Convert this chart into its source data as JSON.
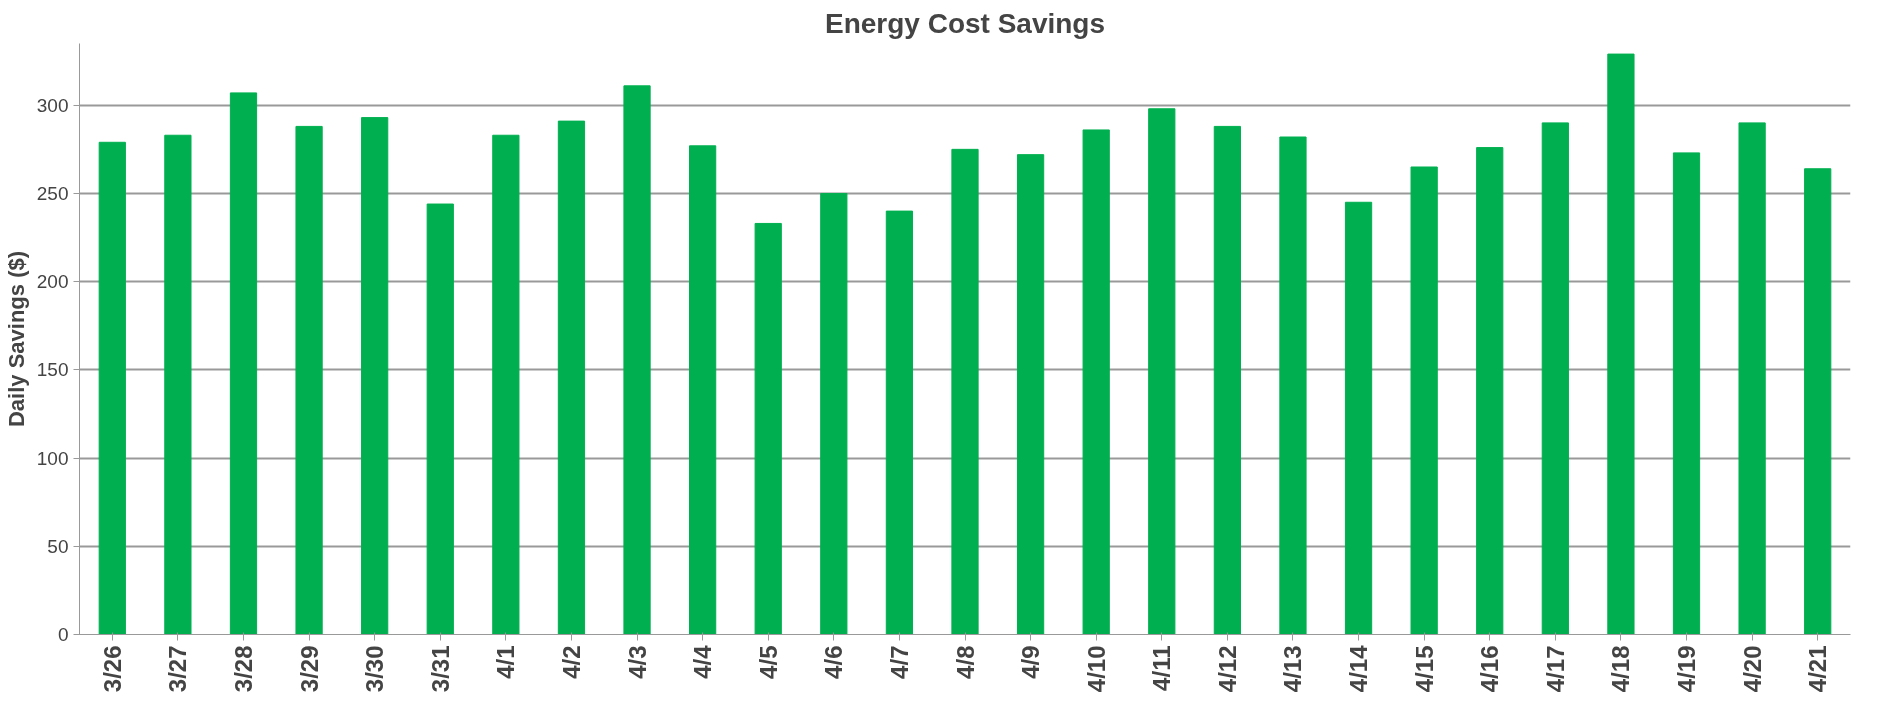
{
  "chart_data": {
    "type": "bar",
    "title": "Energy Cost Savings",
    "ylabel": "Daily Savings ($)",
    "categories": [
      "3/26",
      "3/27",
      "3/28",
      "3/29",
      "3/30",
      "3/31",
      "4/1",
      "4/2",
      "4/3",
      "4/4",
      "4/5",
      "4/6",
      "4/7",
      "4/8",
      "4/9",
      "4/10",
      "4/11",
      "4/12",
      "4/13",
      "4/14",
      "4/15",
      "4/16",
      "4/17",
      "4/18",
      "4/19",
      "4/20",
      "4/21"
    ],
    "values": [
      279,
      283,
      307,
      288,
      293,
      244,
      283,
      291,
      311,
      277,
      233,
      250,
      240,
      275,
      272,
      286,
      298,
      288,
      282,
      245,
      265,
      276,
      290,
      329,
      273,
      290,
      264
    ],
    "color": "#00b050",
    "ylim": [
      0,
      335
    ],
    "yticks": [
      0,
      50,
      100,
      150,
      200,
      250,
      300
    ],
    "grid": "y"
  }
}
